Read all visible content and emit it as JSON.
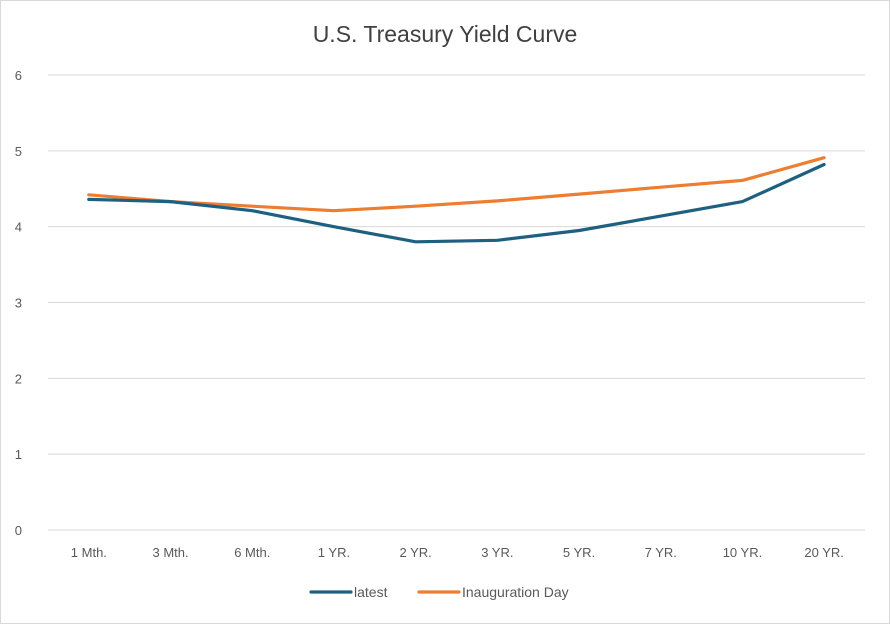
{
  "chart_data": {
    "type": "line",
    "title": "U.S. Treasury Yield Curve",
    "xlabel": "",
    "ylabel": "",
    "categories": [
      "1 Mth.",
      "3 Mth.",
      "6 Mth.",
      "1 YR.",
      "2 YR.",
      "3 YR.",
      "5 YR.",
      "7 YR.",
      "10 YR.",
      "20 YR."
    ],
    "ylim": [
      0,
      6
    ],
    "yticks": [
      "0",
      "1",
      "2",
      "3",
      "4",
      "5",
      "6"
    ],
    "grid": true,
    "legend_position": "bottom",
    "series": [
      {
        "name": "latest",
        "color": "#1f5f7f",
        "values": [
          4.36,
          4.33,
          4.21,
          4.0,
          3.8,
          3.82,
          3.95,
          4.14,
          4.33,
          4.82
        ]
      },
      {
        "name": "Inauguration Day",
        "color": "#ed7d31",
        "values": [
          4.42,
          4.33,
          4.27,
          4.21,
          4.27,
          4.34,
          4.43,
          4.52,
          4.61,
          4.91
        ]
      }
    ]
  }
}
